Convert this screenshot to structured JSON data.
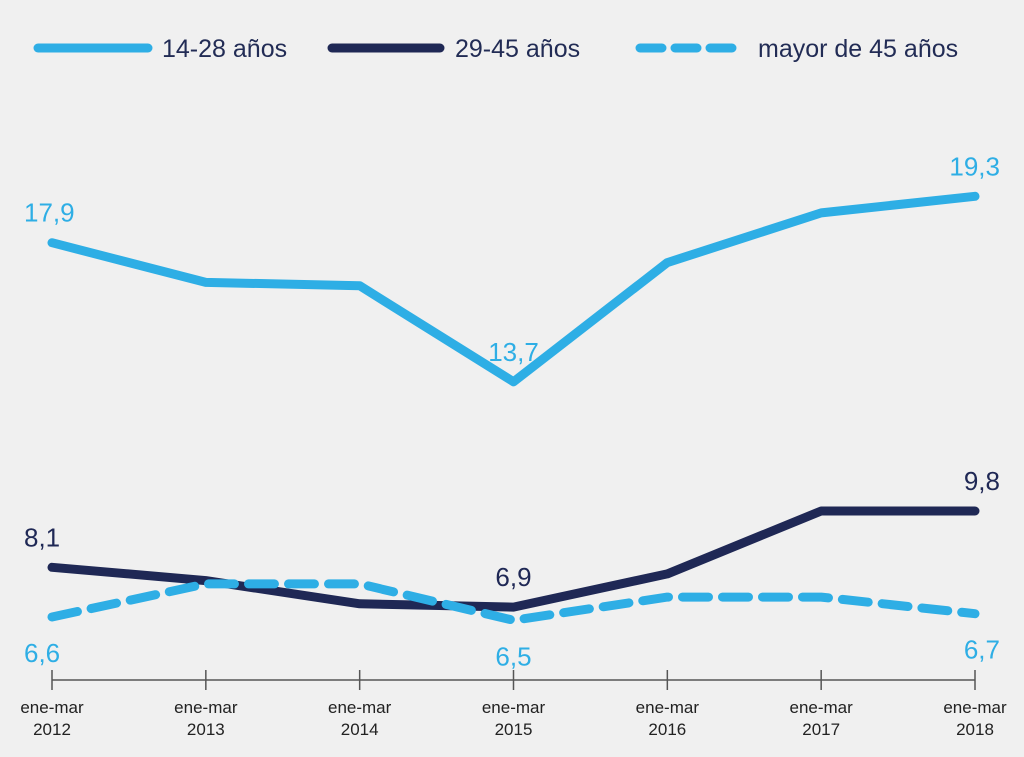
{
  "chart_data": {
    "type": "line",
    "title": "",
    "xlabel": "",
    "ylabel": "",
    "categories": [
      [
        "ene-mar",
        "2012"
      ],
      [
        "ene-mar",
        "2013"
      ],
      [
        "ene-mar",
        "2014"
      ],
      [
        "ene-mar",
        "2015"
      ],
      [
        "ene-mar",
        "2016"
      ],
      [
        "ene-mar",
        "2017"
      ],
      [
        "ene-mar",
        "2018"
      ]
    ],
    "ylim": [
      5,
      21
    ],
    "grid": false,
    "legend": "top",
    "series": [
      {
        "name": "14-28 años",
        "color": "#2eaee5",
        "style": "solid",
        "values": [
          17.9,
          16.7,
          16.6,
          13.7,
          17.3,
          18.8,
          19.3
        ],
        "labels": [
          {
            "index": 0,
            "text": "17,9",
            "position": "above"
          },
          {
            "index": 3,
            "text": "13,7",
            "position": "above"
          },
          {
            "index": 6,
            "text": "19,3",
            "position": "above"
          }
        ]
      },
      {
        "name": "29-45 años",
        "color": "#1f2855",
        "style": "solid",
        "values": [
          8.1,
          7.7,
          7.0,
          6.9,
          7.9,
          9.8,
          9.8
        ],
        "labels": [
          {
            "index": 0,
            "text": "8,1",
            "position": "above"
          },
          {
            "index": 3,
            "text": "6,9",
            "position": "above"
          },
          {
            "index": 6,
            "text": "9,8",
            "position": "above"
          }
        ]
      },
      {
        "name": "mayor de 45 años",
        "color": "#2eaee5",
        "style": "dashed",
        "values": [
          6.6,
          7.6,
          7.6,
          6.5,
          7.2,
          7.2,
          6.7
        ],
        "labels": [
          {
            "index": 0,
            "text": "6,6",
            "position": "below"
          },
          {
            "index": 3,
            "text": "6,5",
            "position": "below"
          },
          {
            "index": 6,
            "text": "6,7",
            "position": "below"
          }
        ]
      }
    ]
  }
}
